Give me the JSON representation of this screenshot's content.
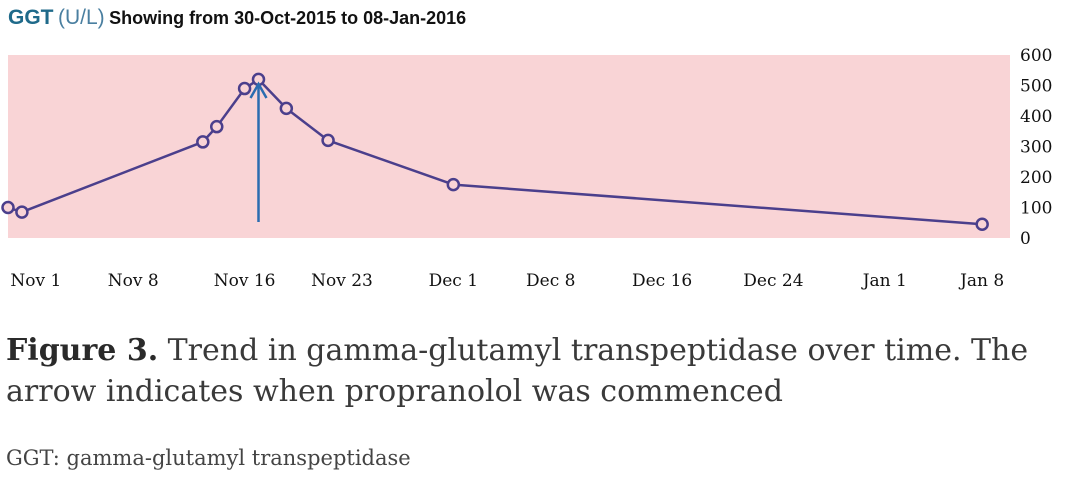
{
  "header": {
    "name": "GGT",
    "unit": "(U/L)",
    "range_text": "Showing from 30-Oct-2015 to 08-Jan-2016"
  },
  "chart_data": {
    "type": "line",
    "title": "GGT (U/L) Showing from 30-Oct-2015 to 08-Jan-2016",
    "xlabel": "",
    "ylabel": "",
    "x_axis": {
      "range": [
        "2015-10-30",
        "2016-01-10"
      ],
      "ticks": [
        {
          "date": "2015-11-01",
          "label": "Nov 1"
        },
        {
          "date": "2015-11-08",
          "label": "Nov 8"
        },
        {
          "date": "2015-11-16",
          "label": "Nov 16"
        },
        {
          "date": "2015-11-23",
          "label": "Nov 23"
        },
        {
          "date": "2015-12-01",
          "label": "Dec 1"
        },
        {
          "date": "2015-12-08",
          "label": "Dec 8"
        },
        {
          "date": "2015-12-16",
          "label": "Dec 16"
        },
        {
          "date": "2015-12-24",
          "label": "Dec 24"
        },
        {
          "date": "2016-01-01",
          "label": "Jan 1"
        },
        {
          "date": "2016-01-08",
          "label": "Jan 8"
        }
      ]
    },
    "y_axis": {
      "range": [
        0,
        600
      ],
      "ticks": [
        0,
        100,
        200,
        300,
        400,
        500,
        600
      ],
      "position": "right"
    },
    "grid": false,
    "background_color": "#f9d4d6",
    "series": [
      {
        "color": "#4b3f8c",
        "points": [
          {
            "x": "2015-10-30",
            "y": 100
          },
          {
            "x": "2015-10-31",
            "y": 85
          },
          {
            "x": "2015-11-13",
            "y": 315
          },
          {
            "x": "2015-11-14",
            "y": 365
          },
          {
            "x": "2015-11-16",
            "y": 490
          },
          {
            "x": "2015-11-17",
            "y": 520
          },
          {
            "x": "2015-11-19",
            "y": 425
          },
          {
            "x": "2015-11-22",
            "y": 320
          },
          {
            "x": "2015-12-01",
            "y": 175
          },
          {
            "x": "2016-01-08",
            "y": 45
          }
        ]
      }
    ],
    "annotation": {
      "type": "arrow",
      "x": "2015-11-17",
      "color": "#2b6cb0"
    }
  },
  "caption": {
    "label": "Figure 3.",
    "text": " Trend in gamma-glutamyl transpeptidase over time. The arrow indicates when propranolol was commenced"
  },
  "footnote": "GGT: gamma-glutamyl transpeptidase"
}
